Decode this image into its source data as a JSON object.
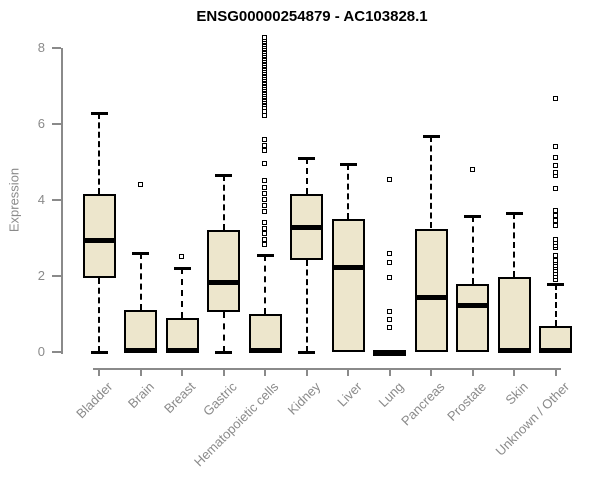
{
  "title": "ENSG00000254879 - AC103828.1",
  "chart_data": {
    "type": "boxplot",
    "title": "ENSG00000254879 - AC103828.1",
    "xlabel": "",
    "ylabel": "Expression",
    "ylim": [
      0,
      8.3
    ],
    "yticks": [
      0,
      2,
      4,
      6,
      8
    ],
    "grid": false,
    "legend": false,
    "categories": [
      "Bladder",
      "Brain",
      "Breast",
      "Gastric",
      "Hematopoietic cells",
      "Kidney",
      "Liver",
      "Lung",
      "Pancreas",
      "Prostate",
      "Skin",
      "Unknown / Other"
    ],
    "series": [
      {
        "name": "Bladder",
        "whisker_low": 0,
        "q1": 1.95,
        "median": 2.95,
        "q3": 4.15,
        "whisker_high": 6.3,
        "outliers": []
      },
      {
        "name": "Brain",
        "whisker_low": 0,
        "q1": 0,
        "median": 0.05,
        "q3": 1.1,
        "whisker_high": 2.6,
        "outliers": [
          4.4
        ]
      },
      {
        "name": "Breast",
        "whisker_low": 0,
        "q1": 0,
        "median": 0.05,
        "q3": 0.9,
        "whisker_high": 2.2,
        "outliers": [
          2.5
        ]
      },
      {
        "name": "Gastric",
        "whisker_low": 0,
        "q1": 1.05,
        "median": 1.85,
        "q3": 3.2,
        "whisker_high": 4.65,
        "outliers": []
      },
      {
        "name": "Hematopoietic cells",
        "whisker_low": 0,
        "q1": 0,
        "median": 0.05,
        "q3": 1.0,
        "whisker_high": 2.55,
        "outliers": [
          2.82,
          2.95,
          3.1,
          3.25,
          3.39,
          3.68,
          3.84,
          4.0,
          4.16,
          4.32,
          4.5,
          4.95,
          5.29,
          5.42,
          5.58,
          6.21,
          6.32,
          6.42,
          6.5,
          6.54,
          6.59,
          6.63,
          6.68,
          6.72,
          6.77,
          6.81,
          6.86,
          6.9,
          6.95,
          6.99,
          7.04,
          7.08,
          7.13,
          7.17,
          7.22,
          7.26,
          7.31,
          7.35,
          7.4,
          7.44,
          7.49,
          7.53,
          7.58,
          7.62,
          7.67,
          7.71,
          7.76,
          7.8,
          7.85,
          7.89,
          7.94,
          7.98,
          8.03,
          8.07,
          8.12,
          8.16,
          8.21,
          8.26
        ]
      },
      {
        "name": "Kidney",
        "whisker_low": 0,
        "q1": 2.42,
        "median": 3.3,
        "q3": 4.15,
        "whisker_high": 5.1,
        "outliers": []
      },
      {
        "name": "Liver",
        "whisker_low": 0,
        "q1": 0,
        "median": 2.25,
        "q3": 3.5,
        "whisker_high": 4.95,
        "outliers": []
      },
      {
        "name": "Lung",
        "whisker_low": 0,
        "q1": 0,
        "median": 0,
        "q3": 0,
        "whisker_high": 0,
        "outliers": [
          0.63,
          0.84,
          1.05,
          1.95,
          2.34,
          2.58,
          4.53
        ]
      },
      {
        "name": "Pancreas",
        "whisker_low": 0,
        "q1": 0,
        "median": 1.45,
        "q3": 3.25,
        "whisker_high": 5.68,
        "outliers": []
      },
      {
        "name": "Prostate",
        "whisker_low": 0,
        "q1": 0,
        "median": 1.25,
        "q3": 1.78,
        "whisker_high": 3.58,
        "outliers": [
          4.78
        ]
      },
      {
        "name": "Skin",
        "whisker_low": 0,
        "q1": 0,
        "median": 0.05,
        "q3": 1.98,
        "whisker_high": 3.65,
        "outliers": []
      },
      {
        "name": "Unknown / Other",
        "whisker_low": 0,
        "q1": 0,
        "median": 0.05,
        "q3": 0.68,
        "whisker_high": 1.78,
        "outliers": [
          1.9,
          1.97,
          2.05,
          2.13,
          2.21,
          2.27,
          2.34,
          2.4,
          2.53,
          2.74,
          2.8,
          2.87,
          2.95,
          3.31,
          3.44,
          3.57,
          3.7,
          4.3,
          4.62,
          4.72,
          4.9,
          5.1,
          5.4,
          6.65
        ]
      }
    ],
    "colors": {
      "box_fill": "#EDE6CC",
      "box_border": "#000000",
      "median": "#000000",
      "whisker": "#000000",
      "axis": "#8a8a8a",
      "title": "#000000",
      "background": "#ffffff"
    }
  }
}
